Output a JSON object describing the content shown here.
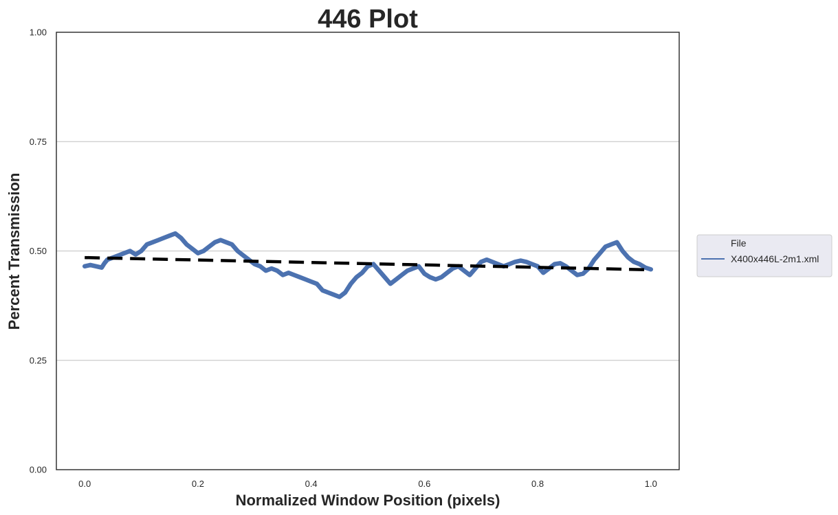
{
  "chart_data": {
    "type": "line",
    "title": "446 Plot",
    "xlabel": "Normalized Window Position (pixels)",
    "ylabel": "Percent Transmission",
    "xlim": [
      -0.05,
      1.05
    ],
    "ylim": [
      0.0,
      1.0
    ],
    "xticks": [
      0.0,
      0.2,
      0.4,
      0.6,
      0.8,
      1.0
    ],
    "xtick_labels": [
      "0.0",
      "0.2",
      "0.4",
      "0.6",
      "0.8",
      "1.0"
    ],
    "yticks": [
      0.0,
      0.25,
      0.5,
      0.75,
      1.0
    ],
    "ytick_labels": [
      "0.00",
      "0.25",
      "0.50",
      "0.75",
      "1.00"
    ],
    "grid": "horizontal",
    "legend": {
      "title": "File",
      "placement": "right-outside",
      "entries": [
        "X400x446L-2m1.xml"
      ]
    },
    "series": [
      {
        "name": "X400x446L-2m1.xml",
        "style": "solid",
        "color": "#4C72B0",
        "x": [
          0.0,
          0.01,
          0.02,
          0.03,
          0.035,
          0.04,
          0.05,
          0.06,
          0.07,
          0.08,
          0.09,
          0.1,
          0.11,
          0.12,
          0.13,
          0.14,
          0.15,
          0.16,
          0.17,
          0.18,
          0.19,
          0.2,
          0.21,
          0.22,
          0.23,
          0.24,
          0.25,
          0.26,
          0.27,
          0.28,
          0.29,
          0.3,
          0.31,
          0.32,
          0.33,
          0.34,
          0.35,
          0.36,
          0.37,
          0.38,
          0.39,
          0.4,
          0.41,
          0.42,
          0.43,
          0.44,
          0.45,
          0.46,
          0.47,
          0.48,
          0.49,
          0.5,
          0.51,
          0.52,
          0.53,
          0.54,
          0.55,
          0.56,
          0.57,
          0.58,
          0.59,
          0.6,
          0.61,
          0.62,
          0.63,
          0.64,
          0.65,
          0.66,
          0.67,
          0.68,
          0.69,
          0.7,
          0.71,
          0.72,
          0.73,
          0.74,
          0.75,
          0.76,
          0.77,
          0.78,
          0.79,
          0.8,
          0.81,
          0.82,
          0.83,
          0.84,
          0.85,
          0.86,
          0.87,
          0.88,
          0.89,
          0.9,
          0.91,
          0.92,
          0.93,
          0.94,
          0.95,
          0.96,
          0.97,
          0.98,
          0.99,
          1.0
        ],
        "y": [
          0.465,
          0.468,
          0.465,
          0.462,
          0.472,
          0.48,
          0.485,
          0.49,
          0.495,
          0.5,
          0.492,
          0.5,
          0.515,
          0.52,
          0.525,
          0.53,
          0.535,
          0.54,
          0.53,
          0.515,
          0.505,
          0.495,
          0.5,
          0.51,
          0.52,
          0.525,
          0.52,
          0.515,
          0.5,
          0.49,
          0.48,
          0.47,
          0.465,
          0.455,
          0.46,
          0.455,
          0.445,
          0.45,
          0.445,
          0.44,
          0.435,
          0.43,
          0.425,
          0.41,
          0.405,
          0.4,
          0.395,
          0.405,
          0.425,
          0.44,
          0.45,
          0.465,
          0.47,
          0.455,
          0.44,
          0.425,
          0.435,
          0.445,
          0.455,
          0.46,
          0.465,
          0.448,
          0.44,
          0.435,
          0.44,
          0.45,
          0.46,
          0.465,
          0.455,
          0.445,
          0.46,
          0.475,
          0.48,
          0.475,
          0.47,
          0.465,
          0.47,
          0.475,
          0.478,
          0.475,
          0.47,
          0.465,
          0.45,
          0.46,
          0.47,
          0.472,
          0.465,
          0.455,
          0.445,
          0.448,
          0.46,
          0.48,
          0.495,
          0.51,
          0.515,
          0.52,
          0.5,
          0.485,
          0.475,
          0.47,
          0.462,
          0.458
        ]
      },
      {
        "name": "",
        "style": "dashed",
        "color": "#000000",
        "x": [
          0.0,
          1.0
        ],
        "y": [
          0.485,
          0.457
        ]
      }
    ]
  }
}
